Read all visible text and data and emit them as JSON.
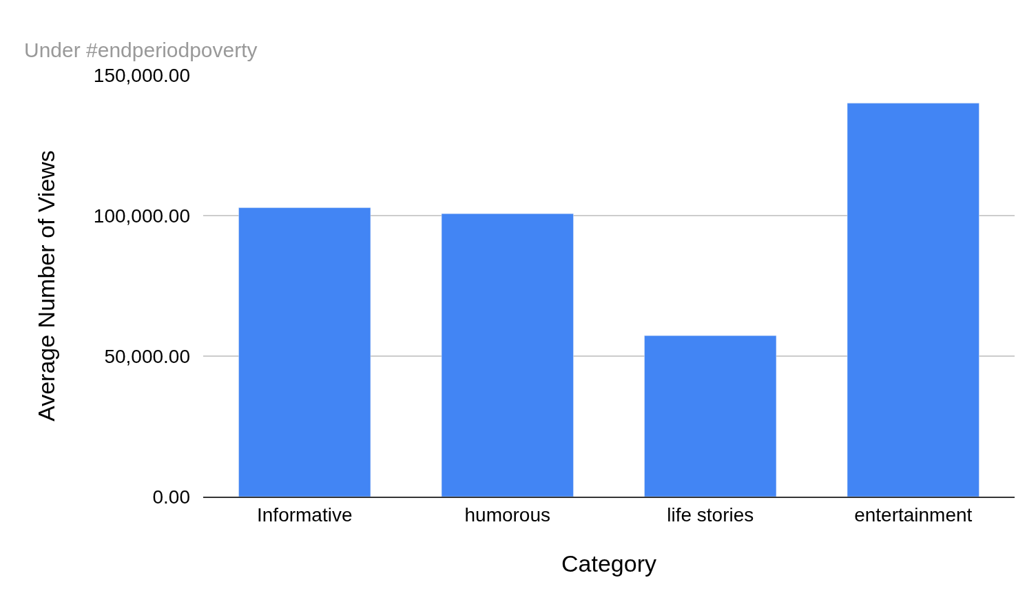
{
  "chart_data": {
    "type": "bar",
    "subtitle": "Under #endperiodpoverty",
    "xlabel": "Category",
    "ylabel": "Average Number of Views",
    "categories": [
      "Informative",
      "humorous",
      "life stories",
      "entertainment"
    ],
    "values": [
      102800,
      100700,
      57300,
      140000
    ],
    "color": "#4285f4",
    "ylim": [
      0,
      150000
    ],
    "yticks": [
      {
        "value": 0,
        "label": "0.00"
      },
      {
        "value": 50000,
        "label": "50,000.00"
      },
      {
        "value": 100000,
        "label": "100,000.00"
      },
      {
        "value": 150000,
        "label": "150,000.00"
      }
    ],
    "grid": "y",
    "legend": false
  }
}
